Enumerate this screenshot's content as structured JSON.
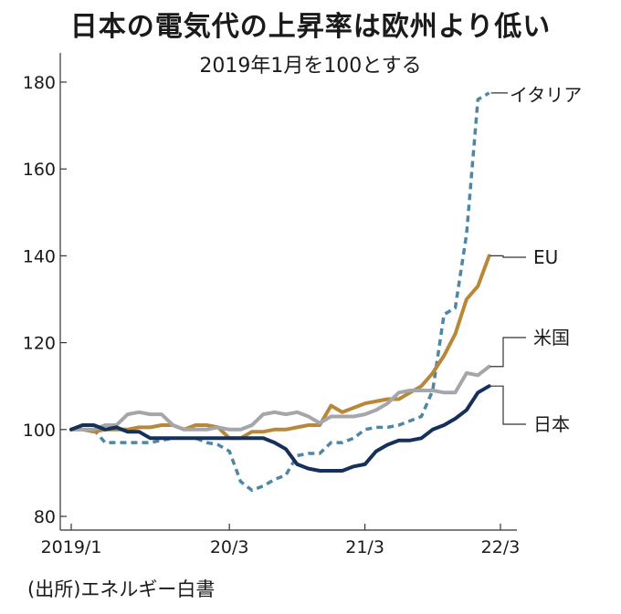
{
  "chart_data": {
    "type": "line",
    "title": "日本の電気代の上昇率は欧州より低い",
    "subtitle": "2019年1月を100とする",
    "source": "(出所)エネルギー白書",
    "ylim": [
      80,
      180
    ],
    "yticks": [
      80,
      100,
      120,
      140,
      160,
      180
    ],
    "xlim": [
      0,
      38
    ],
    "xticks": [
      {
        "x": 0,
        "label": "2019/1"
      },
      {
        "x": 14,
        "label": "20/3"
      },
      {
        "x": 26,
        "label": "21/3"
      },
      {
        "x": 38,
        "label": "22/3"
      }
    ],
    "grid": false,
    "legend": "right-end labels",
    "series": [
      {
        "name": "イタリア",
        "color": "#4f86a3",
        "dash": "dashed",
        "points": [
          [
            0,
            100
          ],
          [
            1,
            100
          ],
          [
            2,
            100
          ],
          [
            3,
            97
          ],
          [
            4,
            97
          ],
          [
            5,
            97
          ],
          [
            6,
            97
          ],
          [
            7,
            97
          ],
          [
            8,
            97.5
          ],
          [
            9,
            98
          ],
          [
            10,
            98
          ],
          [
            11,
            98
          ],
          [
            12,
            97
          ],
          [
            13,
            96.5
          ],
          [
            14,
            95
          ],
          [
            15,
            88
          ],
          [
            16,
            86
          ],
          [
            17,
            87
          ],
          [
            18,
            88.5
          ],
          [
            19,
            89.5
          ],
          [
            20,
            94
          ],
          [
            21,
            94.5
          ],
          [
            22,
            94.5
          ],
          [
            23,
            97
          ],
          [
            24,
            97
          ],
          [
            25,
            98
          ],
          [
            26,
            100
          ],
          [
            27,
            100.5
          ],
          [
            28,
            100.5
          ],
          [
            29,
            101
          ],
          [
            30,
            102
          ],
          [
            31,
            103
          ],
          [
            32,
            109
          ],
          [
            33,
            126.5
          ],
          [
            34,
            128
          ],
          [
            35,
            145
          ],
          [
            36,
            176
          ],
          [
            37,
            177.5
          ]
        ]
      },
      {
        "name": "EU",
        "color": "#b8873a",
        "dash": "solid",
        "points": [
          [
            0,
            100
          ],
          [
            1,
            100
          ],
          [
            2,
            99.5
          ],
          [
            3,
            100
          ],
          [
            4,
            100
          ],
          [
            5,
            100
          ],
          [
            6,
            100.5
          ],
          [
            7,
            100.5
          ],
          [
            8,
            101
          ],
          [
            9,
            101
          ],
          [
            10,
            100
          ],
          [
            11,
            101
          ],
          [
            12,
            101
          ],
          [
            13,
            100.5
          ],
          [
            14,
            98
          ],
          [
            15,
            98
          ],
          [
            16,
            99.5
          ],
          [
            17,
            99.5
          ],
          [
            18,
            100
          ],
          [
            19,
            100
          ],
          [
            20,
            100.5
          ],
          [
            21,
            101
          ],
          [
            22,
            101
          ],
          [
            23,
            105.5
          ],
          [
            24,
            104
          ],
          [
            25,
            105
          ],
          [
            26,
            106
          ],
          [
            27,
            106.5
          ],
          [
            28,
            107
          ],
          [
            29,
            107
          ],
          [
            30,
            108.5
          ],
          [
            31,
            110
          ],
          [
            32,
            113
          ],
          [
            33,
            117
          ],
          [
            34,
            122
          ],
          [
            35,
            130
          ],
          [
            36,
            133
          ],
          [
            37,
            140
          ]
        ]
      },
      {
        "name": "米国",
        "color": "#a5a6ab",
        "dash": "solid",
        "points": [
          [
            0,
            100
          ],
          [
            1,
            100
          ],
          [
            2,
            100
          ],
          [
            3,
            101
          ],
          [
            4,
            101
          ],
          [
            5,
            103.5
          ],
          [
            6,
            104
          ],
          [
            7,
            103.5
          ],
          [
            8,
            103.5
          ],
          [
            9,
            101
          ],
          [
            10,
            100
          ],
          [
            11,
            100
          ],
          [
            12,
            100
          ],
          [
            13,
            100.5
          ],
          [
            14,
            100
          ],
          [
            15,
            100
          ],
          [
            16,
            101
          ],
          [
            17,
            103.5
          ],
          [
            18,
            104
          ],
          [
            19,
            103.5
          ],
          [
            20,
            104
          ],
          [
            21,
            103
          ],
          [
            22,
            101.5
          ],
          [
            23,
            103
          ],
          [
            24,
            103
          ],
          [
            25,
            103
          ],
          [
            26,
            103.5
          ],
          [
            27,
            104.5
          ],
          [
            28,
            106
          ],
          [
            29,
            108.5
          ],
          [
            30,
            109
          ],
          [
            31,
            109
          ],
          [
            32,
            109
          ],
          [
            33,
            108.5
          ],
          [
            34,
            108.5
          ],
          [
            35,
            113
          ],
          [
            36,
            112.5
          ],
          [
            37,
            114.5
          ]
        ]
      },
      {
        "name": "日本",
        "color": "#15305a",
        "dash": "solid",
        "points": [
          [
            0,
            100
          ],
          [
            1,
            101
          ],
          [
            2,
            101
          ],
          [
            3,
            100
          ],
          [
            4,
            100.5
          ],
          [
            5,
            99.5
          ],
          [
            6,
            99.5
          ],
          [
            7,
            98
          ],
          [
            8,
            98
          ],
          [
            9,
            98
          ],
          [
            10,
            98
          ],
          [
            11,
            98
          ],
          [
            12,
            98
          ],
          [
            13,
            98
          ],
          [
            14,
            98
          ],
          [
            15,
            98
          ],
          [
            16,
            98
          ],
          [
            17,
            98
          ],
          [
            18,
            97
          ],
          [
            19,
            95.5
          ],
          [
            20,
            92
          ],
          [
            21,
            91
          ],
          [
            22,
            90.5
          ],
          [
            23,
            90.5
          ],
          [
            24,
            90.5
          ],
          [
            25,
            91.5
          ],
          [
            26,
            92
          ],
          [
            27,
            95
          ],
          [
            28,
            96.5
          ],
          [
            29,
            97.5
          ],
          [
            30,
            97.5
          ],
          [
            31,
            98
          ],
          [
            32,
            100
          ],
          [
            33,
            101
          ],
          [
            34,
            102.5
          ],
          [
            35,
            104.5
          ],
          [
            36,
            108.5
          ],
          [
            37,
            110
          ]
        ]
      }
    ]
  }
}
